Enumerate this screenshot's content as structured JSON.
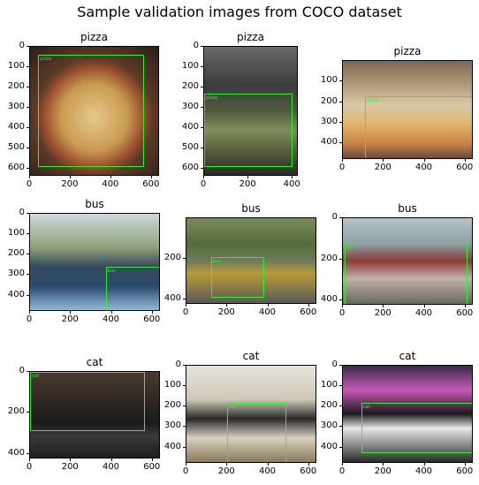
{
  "figure_title": "Sample validation images from COCO dataset",
  "box_color": "#33ee33",
  "panels": [
    {
      "title": "pizza",
      "box_label": "pizza",
      "x_ticks": [
        "0",
        "200",
        "400",
        "600"
      ],
      "y_ticks": [
        "0",
        "100",
        "200",
        "300",
        "400",
        "500",
        "600"
      ],
      "xmax": 640,
      "ymax": 640,
      "box": [
        40,
        40,
        560,
        590
      ],
      "bg": "pizza1"
    },
    {
      "title": "pizza",
      "box_label": "pizza",
      "x_ticks": [
        "0",
        "200",
        "400"
      ],
      "y_ticks": [
        "0",
        "100",
        "200",
        "300",
        "400",
        "500",
        "600"
      ],
      "xmax": 427,
      "ymax": 640,
      "box": [
        0,
        230,
        400,
        590
      ],
      "bg": "pizza2"
    },
    {
      "title": "pizza",
      "box_label": "pizza",
      "x_ticks": [
        "0",
        "200",
        "400",
        "600"
      ],
      "y_ticks": [
        "100",
        "200",
        "300",
        "400"
      ],
      "xmax": 640,
      "ymax": 480,
      "box": [
        110,
        170,
        640,
        480
      ],
      "bg": "pizza3"
    },
    {
      "title": "bus",
      "box_label": "bus",
      "x_ticks": [
        "0",
        "200",
        "400",
        "600"
      ],
      "y_ticks": [
        "0",
        "100",
        "200",
        "300",
        "400"
      ],
      "xmax": 640,
      "ymax": 480,
      "box": [
        370,
        260,
        640,
        480
      ],
      "bg": "bus1"
    },
    {
      "title": "bus",
      "box_label": "bus",
      "x_ticks": [
        "0",
        "200",
        "400",
        "600"
      ],
      "y_ticks": [
        "200",
        "400"
      ],
      "xmax": 640,
      "ymax": 425,
      "box": [
        120,
        190,
        380,
        390
      ],
      "bg": "bus2"
    },
    {
      "title": "bus",
      "box_label": "bus",
      "x_ticks": [
        "0",
        "200",
        "400",
        "600"
      ],
      "y_ticks": [
        "0",
        "200",
        "400"
      ],
      "xmax": 640,
      "ymax": 425,
      "box": [
        10,
        120,
        610,
        420
      ],
      "bg": "bus3"
    },
    {
      "title": "cat",
      "box_label": "cat",
      "x_ticks": [
        "0",
        "200",
        "400",
        "600"
      ],
      "y_ticks": [
        "0",
        "200",
        "400"
      ],
      "xmax": 640,
      "ymax": 426,
      "box": [
        0,
        0,
        560,
        290
      ],
      "bg": "cat1"
    },
    {
      "title": "cat",
      "box_label": "cat",
      "x_ticks": [
        "0",
        "200",
        "400",
        "600"
      ],
      "y_ticks": [
        "0",
        "100",
        "200",
        "300",
        "400"
      ],
      "xmax": 640,
      "ymax": 480,
      "box": [
        200,
        180,
        490,
        480
      ],
      "bg": "cat2"
    },
    {
      "title": "cat",
      "box_label": "cat",
      "x_ticks": [
        "0",
        "200",
        "400",
        "600"
      ],
      "y_ticks": [
        "0",
        "100",
        "200",
        "300",
        "400"
      ],
      "xmax": 640,
      "ymax": 480,
      "box": [
        90,
        180,
        640,
        430
      ],
      "bg": "cat3"
    }
  ]
}
